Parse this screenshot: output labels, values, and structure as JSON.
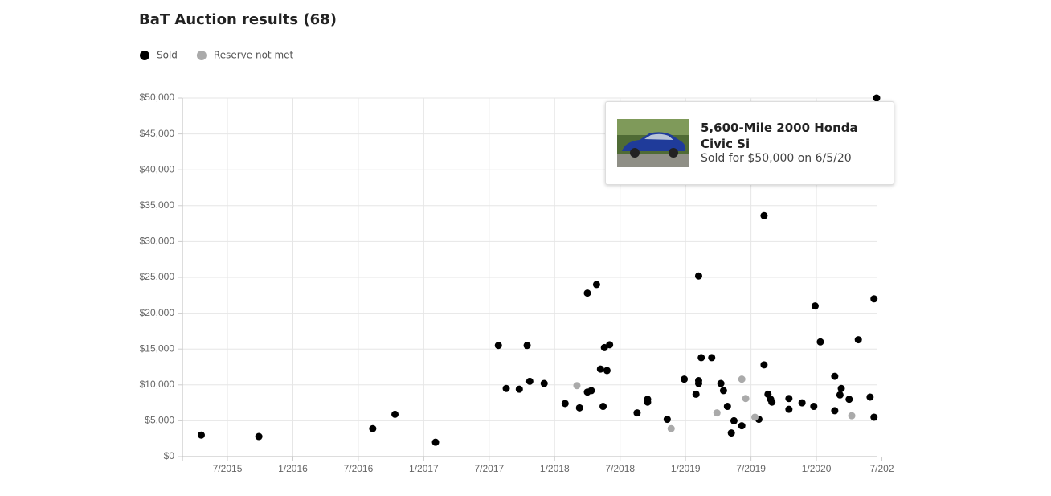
{
  "chart_data": {
    "type": "scatter",
    "title": "BaT Auction results (68)",
    "xlim": [
      2015.156,
      2020.46
    ],
    "ylim": [
      0,
      50000
    ],
    "xticks": [
      {
        "value": 2015.5,
        "label": "7/2015"
      },
      {
        "value": 2016.0,
        "label": "1/2016"
      },
      {
        "value": 2016.5,
        "label": "7/2016"
      },
      {
        "value": 2017.0,
        "label": "1/2017"
      },
      {
        "value": 2017.5,
        "label": "7/2017"
      },
      {
        "value": 2018.0,
        "label": "1/2018"
      },
      {
        "value": 2018.5,
        "label": "7/2018"
      },
      {
        "value": 2019.0,
        "label": "1/2019"
      },
      {
        "value": 2019.5,
        "label": "7/2019"
      },
      {
        "value": 2020.0,
        "label": "1/2020"
      },
      {
        "value": 2020.5,
        "label": "7/202"
      }
    ],
    "yticks": [
      {
        "value": 0,
        "label": "$0"
      },
      {
        "value": 5000,
        "label": "$5,000"
      },
      {
        "value": 10000,
        "label": "$10,000"
      },
      {
        "value": 15000,
        "label": "$15,000"
      },
      {
        "value": 20000,
        "label": "$20,000"
      },
      {
        "value": 25000,
        "label": "$25,000"
      },
      {
        "value": 30000,
        "label": "$30,000"
      },
      {
        "value": 35000,
        "label": "$35,000"
      },
      {
        "value": 40000,
        "label": "$40,000"
      },
      {
        "value": 45000,
        "label": "$45,000"
      },
      {
        "value": 50000,
        "label": "$50,000"
      }
    ],
    "grid": true,
    "series": [
      {
        "name": "Sold",
        "color": "#000000",
        "x": [
          2015.3,
          2015.74,
          2016.61,
          2016.78,
          2017.09,
          2017.57,
          2017.63,
          2017.73,
          2017.79,
          2017.81,
          2017.92,
          2018.08,
          2018.19,
          2018.25,
          2018.25,
          2018.28,
          2018.32,
          2018.35,
          2018.37,
          2018.38,
          2018.4,
          2018.42,
          2018.63,
          2018.71,
          2018.71,
          2018.86,
          2018.99,
          2019.08,
          2019.1,
          2019.1,
          2019.1,
          2019.12,
          2019.2,
          2019.27,
          2019.29,
          2019.32,
          2019.35,
          2019.37,
          2019.43,
          2019.56,
          2019.6,
          2019.6,
          2019.63,
          2019.65,
          2019.66,
          2019.79,
          2019.79,
          2019.89,
          2019.98,
          2019.99,
          2020.03,
          2020.14,
          2020.14,
          2020.18,
          2020.19,
          2020.25,
          2020.32,
          2020.41,
          2020.44,
          2020.44,
          2020.46
        ],
        "values": [
          3000,
          2800,
          3900,
          5900,
          2000,
          15500,
          9500,
          9400,
          15500,
          10500,
          10200,
          7400,
          6800,
          22800,
          9000,
          9200,
          24000,
          12200,
          7000,
          15200,
          12000,
          15600,
          6100,
          7600,
          8000,
          5200,
          10800,
          8700,
          25200,
          10600,
          10200,
          13800,
          13800,
          10200,
          9200,
          7000,
          3300,
          5000,
          4300,
          5200,
          12800,
          33600,
          8700,
          8000,
          7600,
          8100,
          6600,
          7500,
          7000,
          21000,
          16000,
          6400,
          11200,
          8600,
          9500,
          8000,
          16300,
          8300,
          22000,
          5500,
          50000
        ]
      },
      {
        "name": "Reserve not met",
        "color": "#aaaaaa",
        "x": [
          2018.17,
          2018.89,
          2019.24,
          2019.43,
          2019.46,
          2019.53,
          2020.27
        ],
        "values": [
          9900,
          3900,
          6100,
          10800,
          8100,
          5500,
          5700
        ]
      }
    ]
  },
  "tooltip": {
    "title": "5,600-Mile 2000 Honda Civic Si",
    "subtitle": "Sold for $50,000 on 6/5/20"
  }
}
